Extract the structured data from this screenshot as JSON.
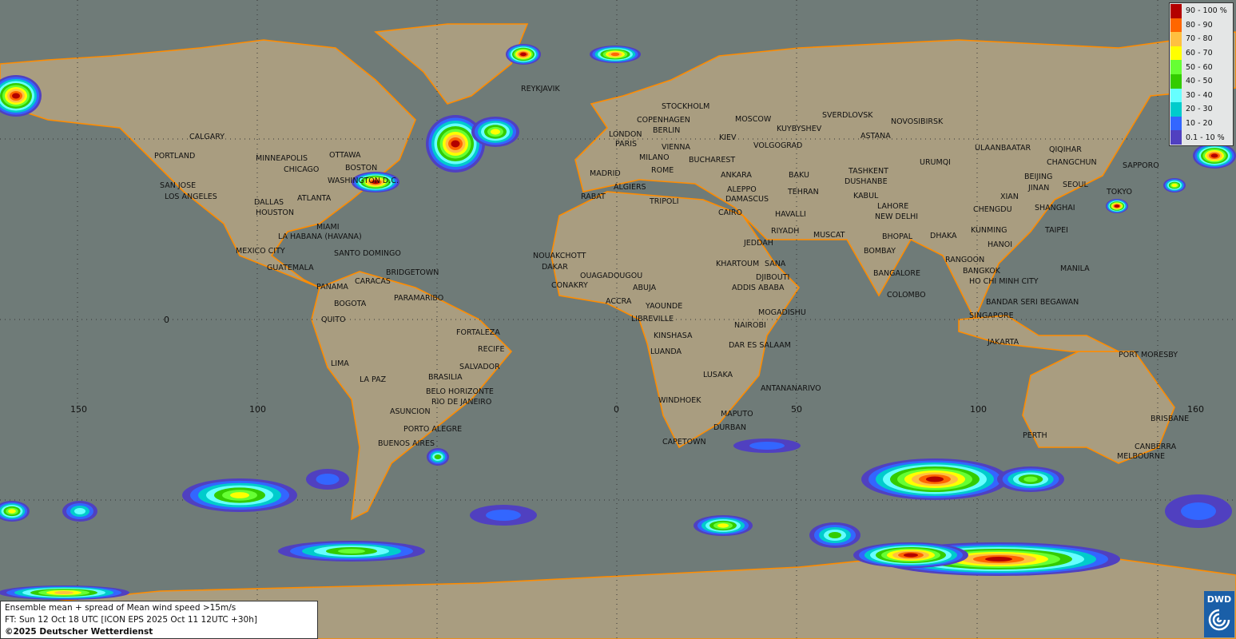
{
  "caption": {
    "line1": "Ensemble mean + spread of Mean wind speed >15m/s",
    "line2": "FT: Sun 12 Oct 18 UTC [ICON EPS 2025 Oct 11 12UTC +30h]",
    "line3": "©2025 Deutscher Wetterdienst"
  },
  "logo": {
    "text": "DWD",
    "icon": "dwd-swirl-icon"
  },
  "legend": [
    {
      "label": "90 - 100 %",
      "color": "#b30000"
    },
    {
      "label": "80 - 90",
      "color": "#ff6600"
    },
    {
      "label": "70 - 80",
      "color": "#ffc040"
    },
    {
      "label": "60 - 70",
      "color": "#ffff00"
    },
    {
      "label": "50 - 60",
      "color": "#66ff33"
    },
    {
      "label": "40 - 50",
      "color": "#33cc00"
    },
    {
      "label": "30 - 40",
      "color": "#66ffff"
    },
    {
      "label": "20 - 30",
      "color": "#00cccc"
    },
    {
      "label": "10 - 20",
      "color": "#3366ff"
    },
    {
      "label": "0.1 - 10 %",
      "color": "#5040c0"
    }
  ],
  "axis_labels": {
    "lon": [
      "150",
      "100",
      "0",
      "50",
      "100",
      "160"
    ],
    "lat": [
      "0"
    ]
  },
  "colors": {
    "ocean": "#6f7b78",
    "land": "#a99d80",
    "coast": "#ff8c00"
  },
  "cities": [
    "REYKJAVIK",
    "STOCKHOLM",
    "COPENHAGEN",
    "LONDON",
    "BERLIN",
    "PARIS",
    "MOSCOW",
    "SVERDLOVSK",
    "NOVOSIBIRSK",
    "KUYBYSHEV",
    "KIEV",
    "VIENNA",
    "VOLGOGRAD",
    "ASTANA",
    "MILANO",
    "BUCHAREST",
    "ULAANBAATAR",
    "QIQIHAR",
    "CHANGCHUN",
    "SAPPORO",
    "MADRID",
    "ROME",
    "ANKARA",
    "BAKU",
    "TASHKENT",
    "URUMQI",
    "BEIJING",
    "DUSHANBE",
    "JINAN",
    "SEOUL",
    "TOKYO",
    "ALGIERS",
    "ALEPPO",
    "TEHRAN",
    "KABUL",
    "LAHORE",
    "XIAN",
    "RABAT",
    "TRIPOLI",
    "DAMASCUS",
    "CAIRO",
    "HAVALLI",
    "NEW DELHI",
    "CHENGDU",
    "SHANGHAI",
    "RIYADH",
    "MUSCAT",
    "BHOPAL",
    "DHAKA",
    "KUNMING",
    "TAIPEI",
    "HANOI",
    "JEDDAH",
    "BOMBAY",
    "NOUAKCHOTT",
    "KHARTOUM",
    "SANA",
    "RANGOON",
    "MANILA",
    "BANGKOK",
    "DAKAR",
    "CONAKRY",
    "OUAGADOUGOU",
    "DJIBOUTI",
    "ADDIS ABABA",
    "BANGALORE",
    "HO CHI MINH CITY",
    "ABUJA",
    "ACCRA",
    "YAOUNDE",
    "COLOMBO",
    "BANDAR SERI BEGAWAN",
    "MOGADISHU",
    "LIBREVILLE",
    "SINGAPORE",
    "NAIROBI",
    "KINSHASA",
    "LUANDA",
    "DAR ES SALAAM",
    "JAKARTA",
    "PORT MORESBY",
    "LUSAKA",
    "ANTANANARIVO",
    "WINDHOEK",
    "MAPUTO",
    "DURBAN",
    "CAPETOWN",
    "PERTH",
    "BRISBANE",
    "CANBERRA",
    "MELBOURNE",
    "CALGARY",
    "PORTLAND",
    "MINNEAPOLIS",
    "OTTAWA",
    "CHICAGO",
    "BOSTON",
    "WASHINGTON D.C.",
    "SAN JOSE",
    "LOS ANGELES",
    "ATLANTA",
    "DALLAS",
    "HOUSTON",
    "MIAMI",
    "LA HABANA (HAVANA)",
    "MEXICO CITY",
    "SANTO DOMINGO",
    "GUATEMALA",
    "BRIDGETOWN",
    "PANAMA",
    "CARACAS",
    "BOGOTA",
    "PARAMARIBO",
    "QUITO",
    "FORTALEZA",
    "RECIFE",
    "LIMA",
    "SALVADOR",
    "LA PAZ",
    "BRASILIA",
    "BELO HORIZONTE",
    "RIO DE JANEIRO",
    "ASUNCION",
    "PORTO ALEGRE",
    "BUENOS AIRES"
  ]
}
